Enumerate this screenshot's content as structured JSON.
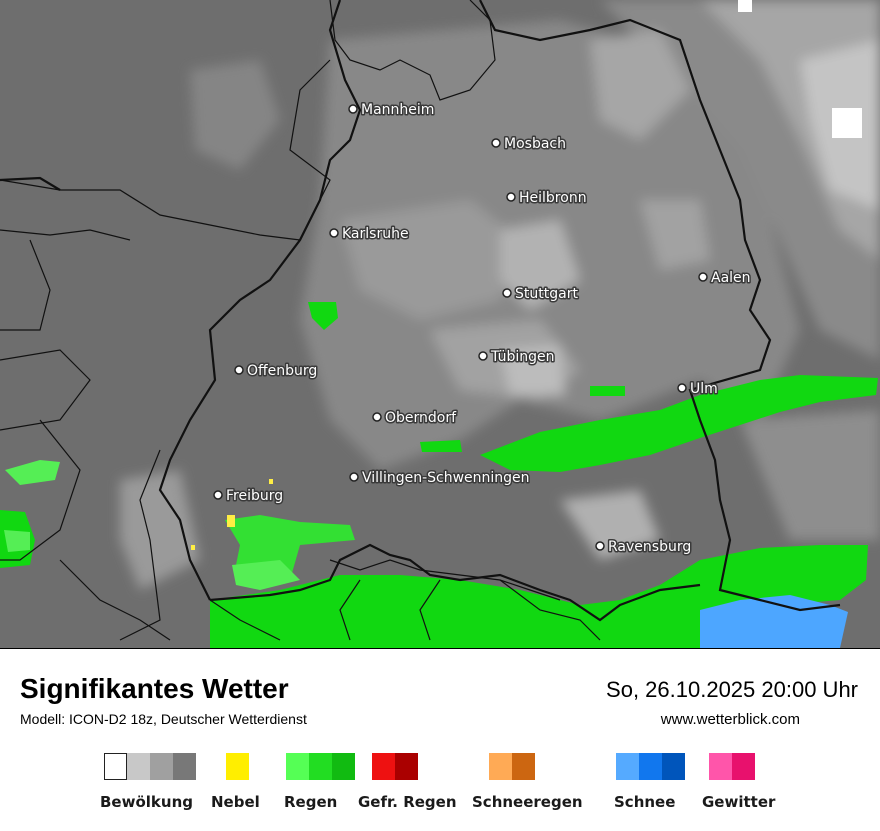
{
  "map": {
    "cities": [
      {
        "name": "Mannheim"
      },
      {
        "name": "Mosbach"
      },
      {
        "name": "Heilbronn"
      },
      {
        "name": "Karlsruhe"
      },
      {
        "name": "Aalen"
      },
      {
        "name": "Stuttgart"
      },
      {
        "name": "Tübingen"
      },
      {
        "name": "Offenburg"
      },
      {
        "name": "Ulm"
      },
      {
        "name": "Oberndorf"
      },
      {
        "name": "Villingen-Schwenningen"
      },
      {
        "name": "Freiburg"
      },
      {
        "name": "Ravensburg"
      }
    ],
    "colors": {
      "background_dark": "#6e6e6e",
      "cloud_mid": "#888888",
      "cloud_light": "#a6a6a6",
      "cloud_lighter": "#c4c4c4",
      "rain": "#11d811",
      "rain_light": "#55ee55",
      "snow": "#4da6ff",
      "fog": "#ffee44",
      "border": "#111111"
    }
  },
  "footer": {
    "title": "Signifikantes Wetter",
    "subtitle": "Modell: ICON-D2 18z, Deutscher Wetterdienst",
    "datetime": "So, 26.10.2025 20:00 Uhr",
    "website": "www.wetterblick.com"
  },
  "legend": [
    {
      "label": "Bewölkung",
      "colors": [
        "#ffffff",
        "#c8c8c8",
        "#a0a0a0",
        "#787878"
      ]
    },
    {
      "label": "Nebel",
      "colors": [
        "#ffee00"
      ]
    },
    {
      "label": "Regen",
      "colors": [
        "#55ff55",
        "#22dd22",
        "#11bb11"
      ]
    },
    {
      "label": "Gefr. Regen",
      "colors": [
        "#ee1111",
        "#aa0000"
      ]
    },
    {
      "label": "Schneeregen",
      "colors": [
        "#ffaa55",
        "#cc6611"
      ]
    },
    {
      "label": "Schnee",
      "colors": [
        "#55aaff",
        "#1177ee",
        "#0055bb"
      ]
    },
    {
      "label": "Gewitter",
      "colors": [
        "#ff55aa",
        "#e8116d"
      ]
    }
  ]
}
